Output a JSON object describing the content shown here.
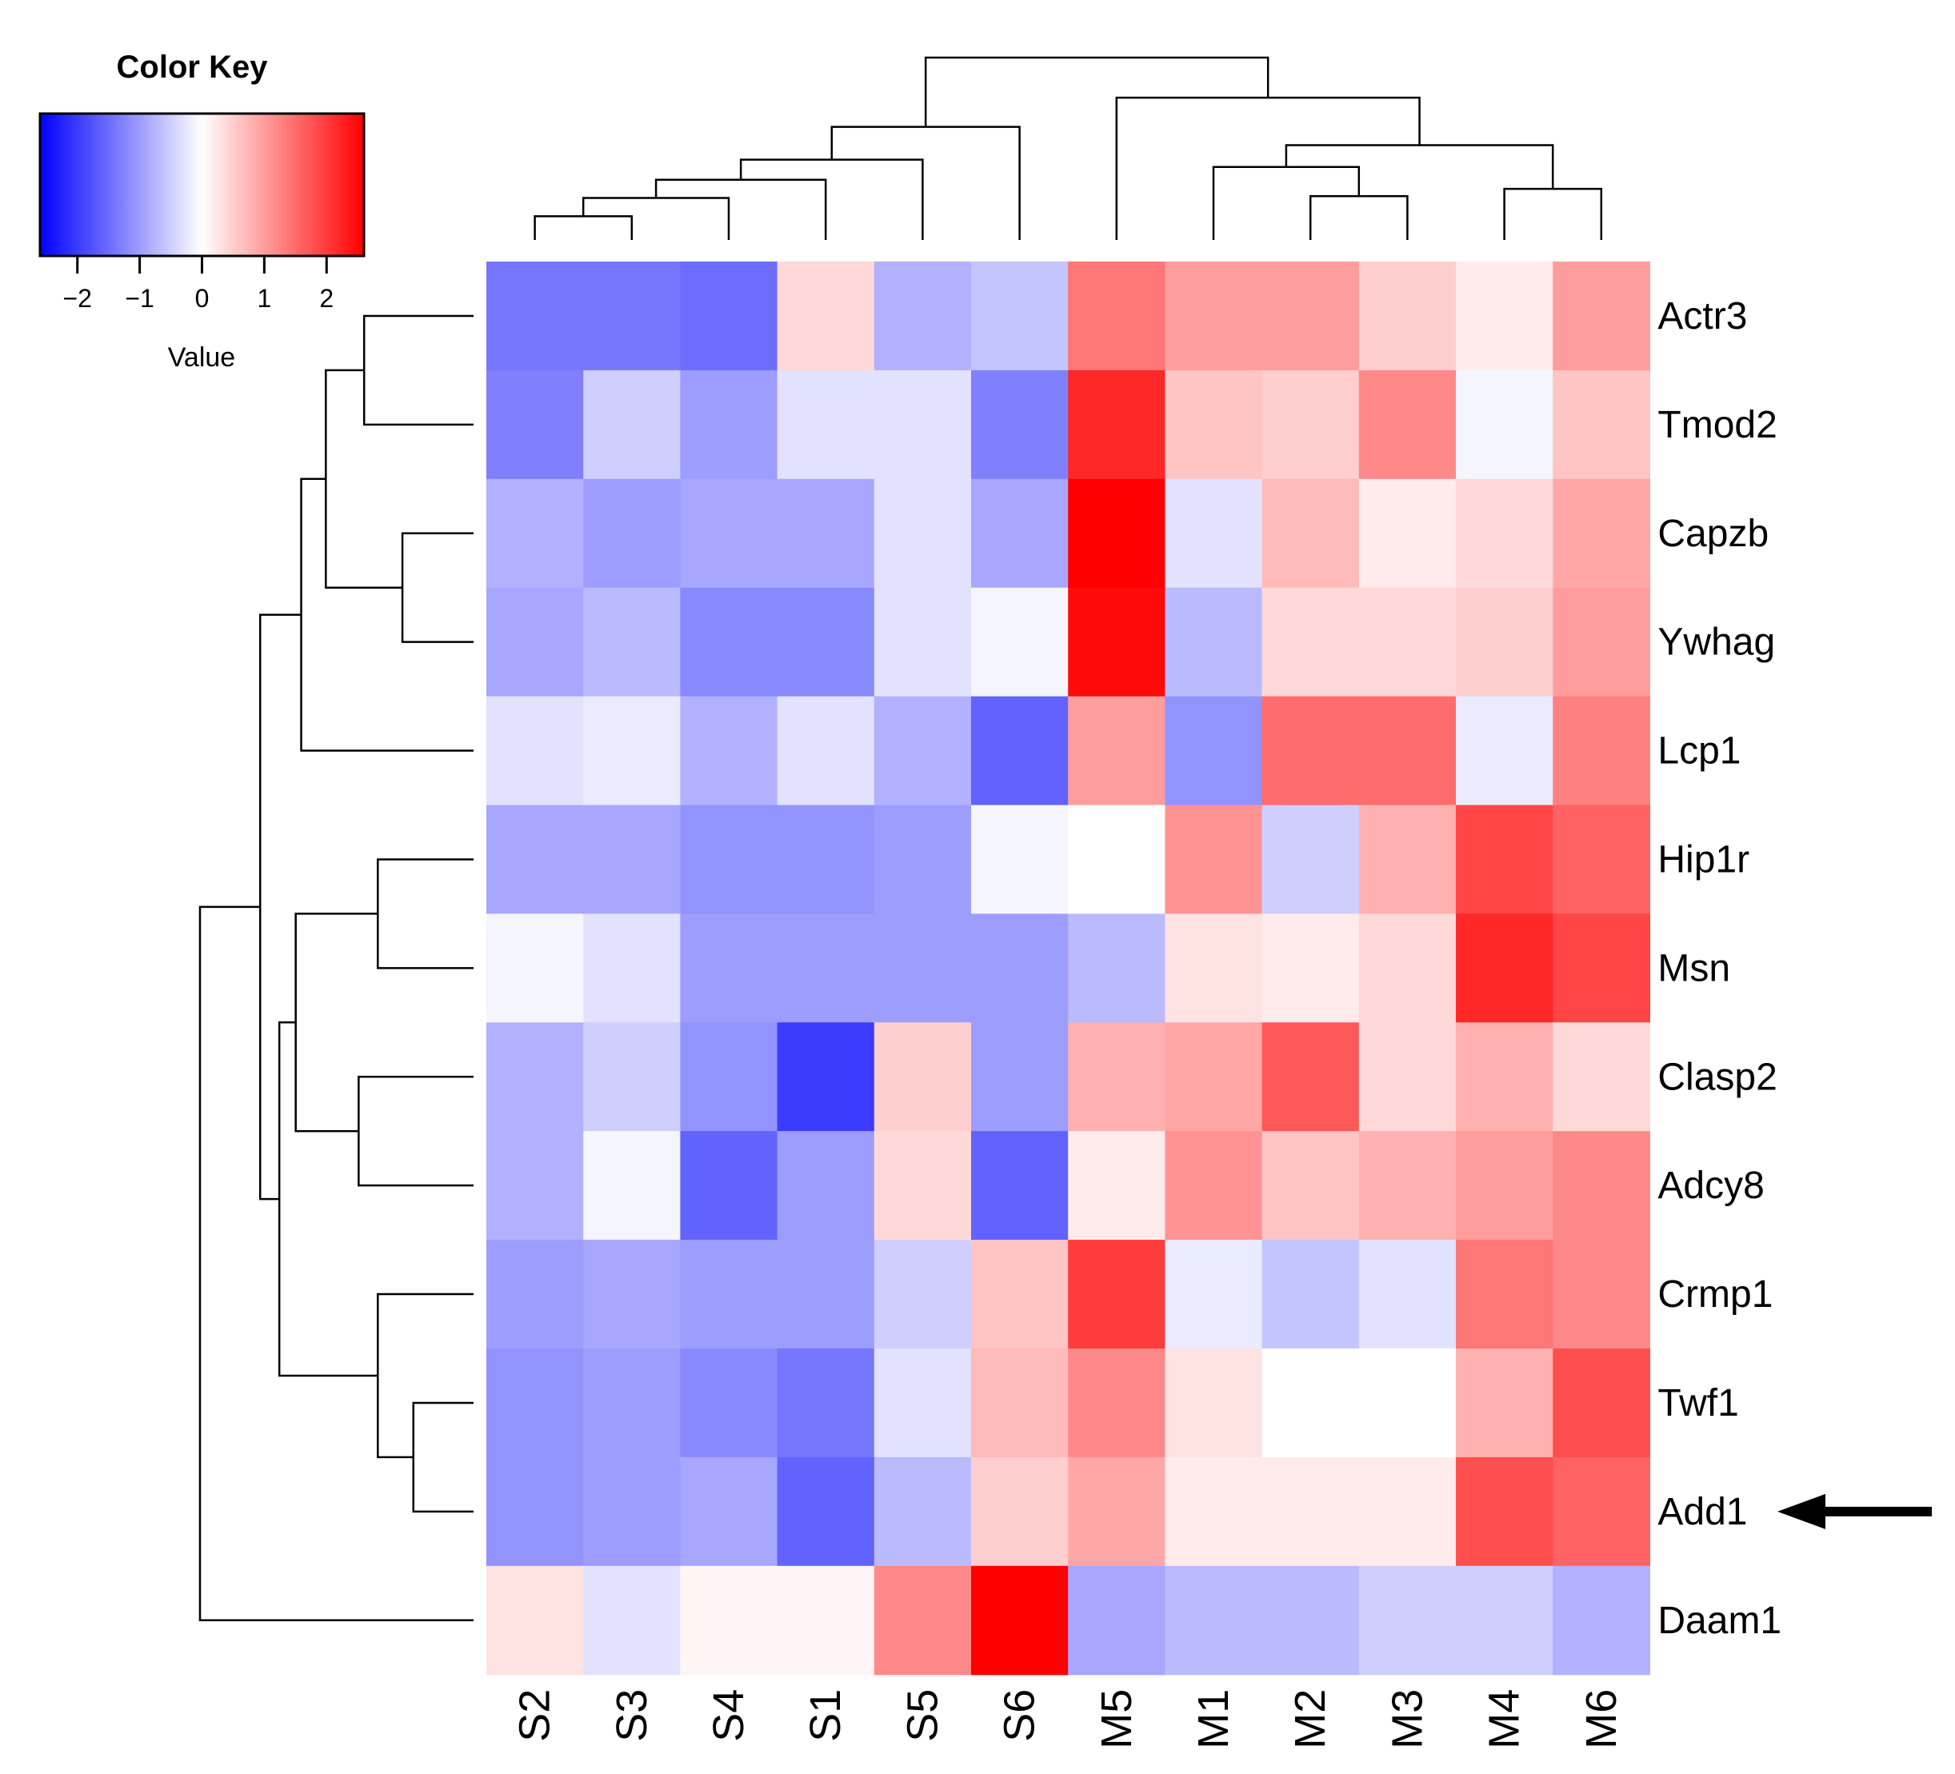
{
  "colors": {
    "low": "#0000ff",
    "mid": "#ffffff",
    "high": "#ff0000",
    "arrow": "#000000"
  },
  "color_key": {
    "title": "Color Key",
    "label": "Value",
    "range": [
      -2.6,
      2.6
    ],
    "ticks": [
      -2,
      -1,
      0,
      1,
      2
    ],
    "tick_labels": [
      "−2",
      "−1",
      "0",
      "1",
      "2"
    ]
  },
  "chart_data": {
    "type": "heatmap",
    "columns": [
      "S2",
      "S3",
      "S4",
      "S1",
      "S5",
      "S6",
      "M5",
      "M1",
      "M2",
      "M3",
      "M4",
      "M6"
    ],
    "rows": [
      "Actr3",
      "Tmod2",
      "Capzb",
      "Ywhag",
      "Lcp1",
      "Hip1r",
      "Msn",
      "Clasp2",
      "Adcy8",
      "Crmp1",
      "Twf1",
      "Add1",
      "Daam1"
    ],
    "values": [
      [
        -1.4,
        -1.4,
        -1.5,
        0.4,
        -0.8,
        -0.6,
        1.4,
        1.0,
        1.0,
        0.5,
        0.2,
        1.0
      ],
      [
        -1.3,
        -0.5,
        -1.0,
        -0.3,
        -0.3,
        -1.3,
        2.2,
        0.6,
        0.5,
        1.2,
        -0.1,
        0.6
      ],
      [
        -0.8,
        -1.0,
        -0.9,
        -0.9,
        -0.3,
        -0.9,
        2.6,
        -0.3,
        0.7,
        0.2,
        0.4,
        0.9
      ],
      [
        -0.9,
        -0.7,
        -1.2,
        -1.2,
        -0.3,
        -0.1,
        2.5,
        -0.7,
        0.4,
        0.4,
        0.5,
        1.0
      ],
      [
        -0.3,
        -0.2,
        -0.8,
        -0.3,
        -0.8,
        -1.6,
        1.0,
        -1.1,
        1.5,
        1.5,
        -0.2,
        1.3
      ],
      [
        -0.9,
        -0.9,
        -1.1,
        -1.1,
        -1.0,
        -0.1,
        0.0,
        1.1,
        -0.5,
        0.8,
        1.9,
        1.6
      ],
      [
        -0.1,
        -0.3,
        -1.0,
        -1.0,
        -1.0,
        -1.0,
        -0.7,
        0.3,
        0.2,
        0.4,
        2.2,
        1.9
      ],
      [
        -0.8,
        -0.5,
        -1.1,
        -2.0,
        0.5,
        -1.0,
        0.8,
        0.9,
        1.7,
        0.4,
        0.8,
        0.4
      ],
      [
        -0.8,
        -0.1,
        -1.6,
        -1.0,
        0.4,
        -1.6,
        0.2,
        1.1,
        0.6,
        0.8,
        1.0,
        1.2
      ],
      [
        -1.0,
        -0.9,
        -1.0,
        -1.0,
        -0.5,
        0.6,
        2.0,
        -0.2,
        -0.6,
        -0.3,
        1.4,
        1.2
      ],
      [
        -1.1,
        -1.0,
        -1.2,
        -1.4,
        -0.3,
        0.7,
        1.2,
        0.3,
        0.0,
        0.0,
        0.8,
        1.8
      ],
      [
        -1.1,
        -1.0,
        -0.9,
        -1.6,
        -0.7,
        0.5,
        0.9,
        0.2,
        0.2,
        0.2,
        1.8,
        1.6
      ],
      [
        0.3,
        -0.3,
        0.1,
        0.1,
        1.2,
        2.6,
        -0.9,
        -0.7,
        -0.7,
        -0.5,
        -0.5,
        -0.8
      ]
    ],
    "col_dendrogram": [
      [
        0,
        1,
        0.13
      ],
      [
        -1,
        2,
        0.23
      ],
      [
        -2,
        3,
        0.33
      ],
      [
        -3,
        4,
        0.44
      ],
      [
        -4,
        5,
        0.62
      ],
      [
        8,
        9,
        0.24
      ],
      [
        7,
        -6,
        0.4
      ],
      [
        10,
        11,
        0.28
      ],
      [
        -7,
        -8,
        0.52
      ],
      [
        6,
        -9,
        0.78
      ],
      [
        -5,
        -10,
        1.0
      ]
    ],
    "row_dendrogram": [
      [
        2,
        3,
        0.26
      ],
      [
        0,
        1,
        0.4
      ],
      [
        -1,
        -2,
        0.54
      ],
      [
        -3,
        4,
        0.63
      ],
      [
        5,
        6,
        0.35
      ],
      [
        7,
        8,
        0.42
      ],
      [
        10,
        11,
        0.22
      ],
      [
        9,
        -7,
        0.35
      ],
      [
        -5,
        -6,
        0.65
      ],
      [
        -8,
        -9,
        0.71
      ],
      [
        -4,
        -10,
        0.78
      ],
      [
        -11,
        12,
        1.0
      ]
    ],
    "annotation": {
      "arrow_row": "Add1"
    }
  }
}
